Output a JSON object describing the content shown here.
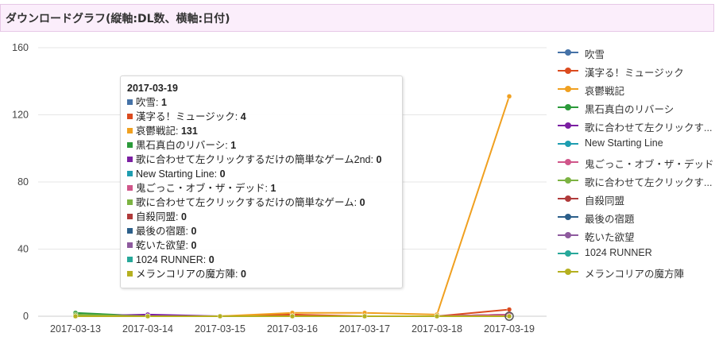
{
  "header": {
    "title": "ダウンロードグラフ(縦軸:DL数、横軸:日付)"
  },
  "chart_data": {
    "type": "line",
    "x": [
      "2017-03-13",
      "2017-03-14",
      "2017-03-15",
      "2017-03-16",
      "2017-03-17",
      "2017-03-18",
      "2017-03-19"
    ],
    "y_ticks": [
      0,
      40,
      80,
      120,
      160
    ],
    "ylim": [
      0,
      160
    ],
    "grid": "horizontal",
    "legend_position": "right",
    "series": [
      {
        "name": "吹雪",
        "color": "#4572a7",
        "values": [
          0,
          0,
          0,
          0,
          0,
          0,
          1
        ]
      },
      {
        "name": "漢字る！ミュージック",
        "color": "#db4b1f",
        "values": [
          0,
          0,
          0,
          1,
          0,
          0,
          4
        ]
      },
      {
        "name": "哀鬱戦記",
        "color": "#f0a020",
        "values": [
          0,
          0,
          0,
          2,
          2,
          1,
          131
        ]
      },
      {
        "name": "黒石真白のリバーシ",
        "color": "#2b9a3a",
        "values": [
          2,
          0,
          0,
          0,
          0,
          0,
          1
        ]
      },
      {
        "name": "歌に合わせて左クリックするだけの簡単なゲーム2nd",
        "color": "#7b1fa2",
        "values": [
          0,
          1,
          0,
          0,
          0,
          0,
          0
        ]
      },
      {
        "name": "New Starting Line",
        "color": "#1e9db0",
        "values": [
          0,
          0,
          0,
          0,
          0,
          0,
          0
        ]
      },
      {
        "name": "鬼ごっこ・オブ・ザ・デッド",
        "color": "#d0568a",
        "values": [
          0,
          0,
          0,
          0,
          0,
          0,
          1
        ]
      },
      {
        "name": "歌に合わせて左クリックするだけの簡単なゲーム",
        "color": "#7cb342",
        "values": [
          1,
          0,
          0,
          0,
          0,
          0,
          0
        ]
      },
      {
        "name": "自殺同盟",
        "color": "#b03a3a",
        "values": [
          0,
          0,
          0,
          0,
          0,
          0,
          0
        ]
      },
      {
        "name": "最後の宿題",
        "color": "#2c5f8a",
        "values": [
          0,
          0,
          0,
          0,
          0,
          0,
          0
        ]
      },
      {
        "name": "乾いた欲望",
        "color": "#8e5a9e",
        "values": [
          0,
          0,
          0,
          0,
          0,
          0,
          0
        ]
      },
      {
        "name": "1024 RUNNER",
        "color": "#27a89a",
        "values": [
          0,
          0,
          0,
          0,
          0,
          0,
          0
        ]
      },
      {
        "name": "メランコリアの魔方陣",
        "color": "#b5b020",
        "values": [
          0,
          0,
          0,
          0,
          0,
          0,
          0
        ]
      }
    ]
  },
  "legend": {
    "items": [
      "吹雪",
      "漢字る！ミュージック",
      "哀鬱戦記",
      "黒石真白のリバーシ",
      "歌に合わせて左クリックす...",
      "New Starting Line",
      "鬼ごっこ・オブ・ザ・デッド",
      "歌に合わせて左クリックす...",
      "自殺同盟",
      "最後の宿題",
      "乾いた欲望",
      "1024 RUNNER",
      "メランコリアの魔方陣"
    ]
  },
  "tooltip": {
    "title": "2017-03-19",
    "rows": [
      {
        "label": "吹雪",
        "value": "1",
        "color": "#4572a7"
      },
      {
        "label": "漢字る！ミュージック",
        "value": "4",
        "color": "#db4b1f"
      },
      {
        "label": "哀鬱戦記",
        "value": "131",
        "color": "#f0a020"
      },
      {
        "label": "黒石真白のリバーシ",
        "value": "1",
        "color": "#2b9a3a"
      },
      {
        "label": "歌に合わせて左クリックするだけの簡単なゲーム2nd",
        "value": "0",
        "color": "#7b1fa2"
      },
      {
        "label": "New Starting Line",
        "value": "0",
        "color": "#1e9db0"
      },
      {
        "label": "鬼ごっこ・オブ・ザ・デッド",
        "value": "1",
        "color": "#d0568a"
      },
      {
        "label": "歌に合わせて左クリックするだけの簡単なゲーム",
        "value": "0",
        "color": "#7cb342"
      },
      {
        "label": "自殺同盟",
        "value": "0",
        "color": "#b03a3a"
      },
      {
        "label": "最後の宿題",
        "value": "0",
        "color": "#2c5f8a"
      },
      {
        "label": "乾いた欲望",
        "value": "0",
        "color": "#8e5a9e"
      },
      {
        "label": "1024 RUNNER",
        "value": "0",
        "color": "#27a89a"
      },
      {
        "label": "メランコリアの魔方陣",
        "value": "0",
        "color": "#b5b020"
      }
    ]
  }
}
